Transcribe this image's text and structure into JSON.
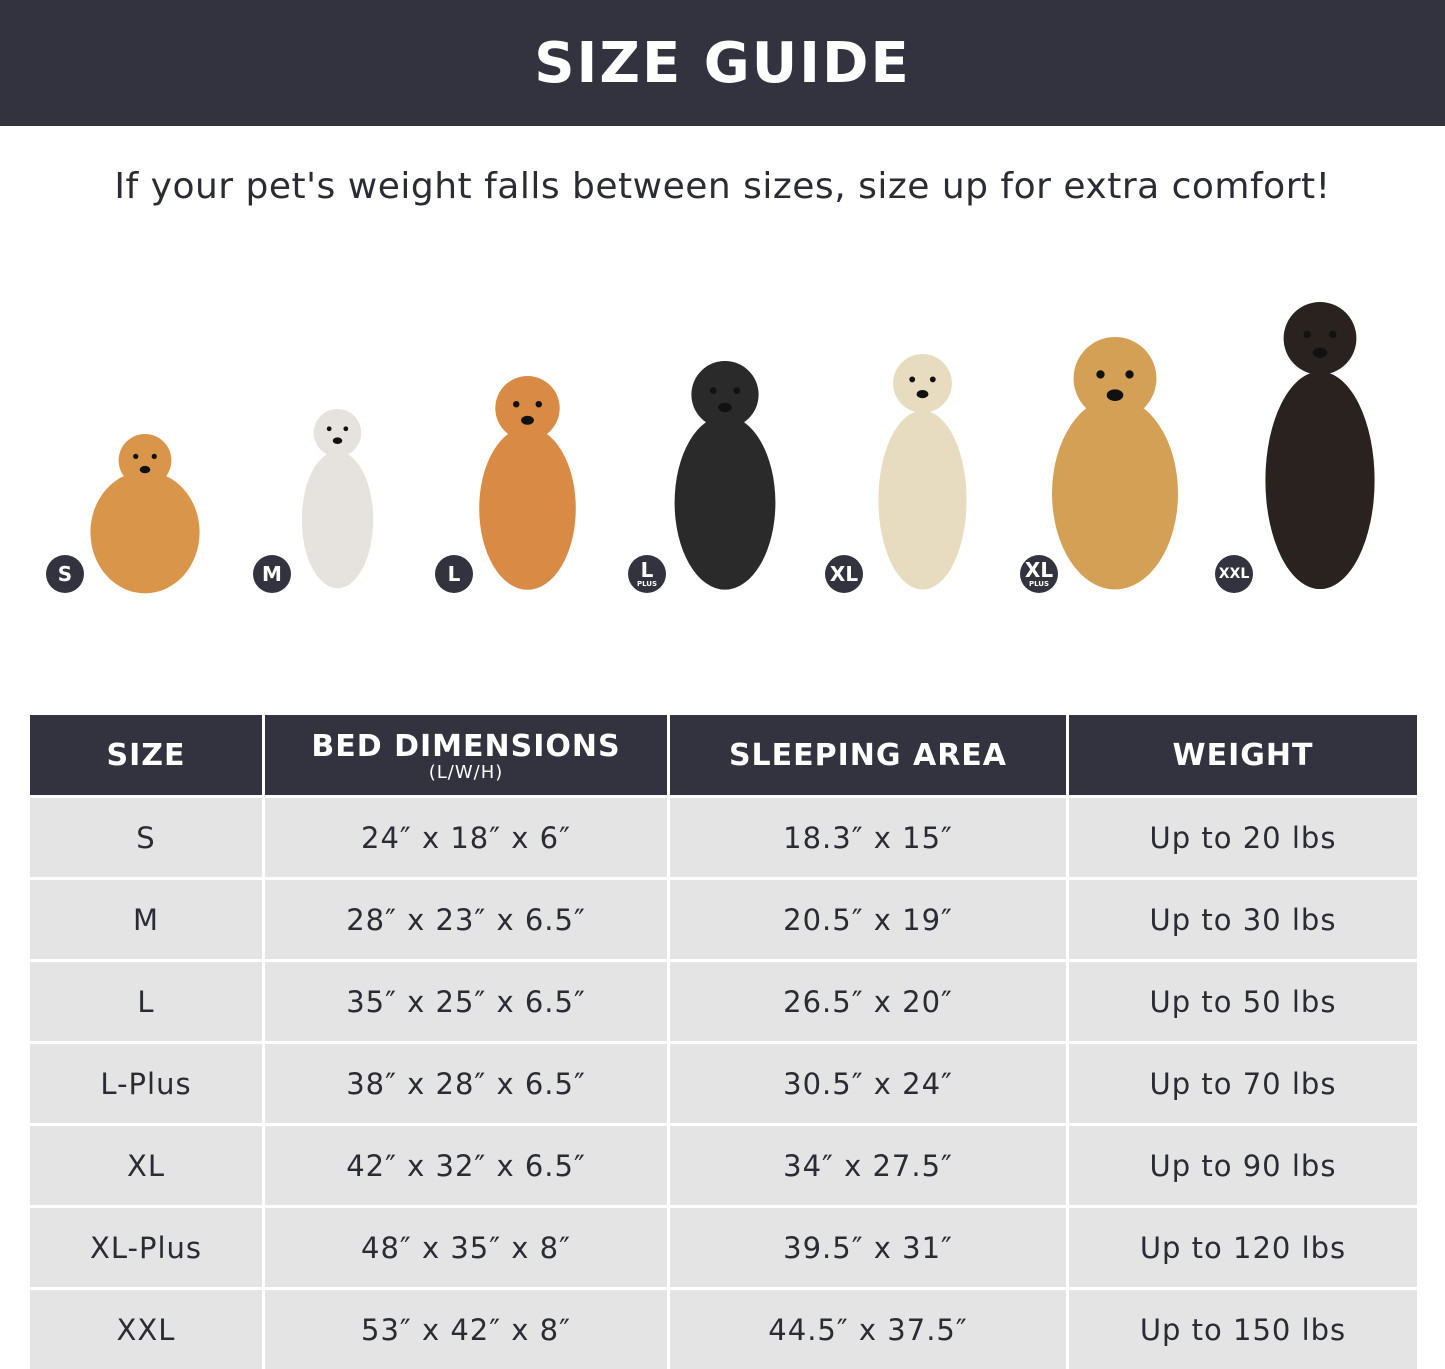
{
  "header": {
    "title": "SIZE GUIDE"
  },
  "subtitle": "If your pet's weight falls between sizes, size up for extra comfort!",
  "dogs": [
    {
      "badge": "S",
      "badge_sub": "",
      "breed_color": "#d9964a"
    },
    {
      "badge": "M",
      "badge_sub": "",
      "breed_color": "#e6e2de"
    },
    {
      "badge": "L",
      "badge_sub": "",
      "breed_color": "#d98a45"
    },
    {
      "badge": "L",
      "badge_sub": "PLUS",
      "breed_color": "#2a2a2a"
    },
    {
      "badge": "XL",
      "badge_sub": "",
      "breed_color": "#e8dcc0"
    },
    {
      "badge": "XL",
      "badge_sub": "PLUS",
      "breed_color": "#d4a055"
    },
    {
      "badge": "XXL",
      "badge_sub": "",
      "breed_color": "#2a221e"
    }
  ],
  "table": {
    "headers": [
      {
        "label": "SIZE",
        "sub": ""
      },
      {
        "label": "BED DIMENSIONS",
        "sub": "(L/W/H)"
      },
      {
        "label": "SLEEPING AREA",
        "sub": ""
      },
      {
        "label": "WEIGHT",
        "sub": ""
      }
    ],
    "rows": [
      [
        "S",
        "24″ x 18″ x 6″",
        "18.3″ x 15″",
        "Up to 20 lbs"
      ],
      [
        "M",
        "28″ x 23″ x 6.5″",
        "20.5″ x 19″",
        "Up to 30 lbs"
      ],
      [
        "L",
        "35″ x 25″ x 6.5″",
        "26.5″ x 20″",
        "Up to 50 lbs"
      ],
      [
        "L-Plus",
        "38″ x 28″ x 6.5″",
        "30.5″ x 24″",
        "Up to 70 lbs"
      ],
      [
        "XL",
        "42″ x 32″ x 6.5″",
        "34″ x 27.5″",
        "Up to 90 lbs"
      ],
      [
        "XL-Plus",
        "48″ x 35″ x 8″",
        "39.5″ x 31″",
        "Up to 120 lbs"
      ],
      [
        "XXL",
        "53″ x 42″ x 8″",
        "44.5″ x 37.5″",
        "Up to 150 lbs"
      ]
    ]
  },
  "colors": {
    "dark": "#33333f",
    "row_bg": "#e4e4e4"
  }
}
